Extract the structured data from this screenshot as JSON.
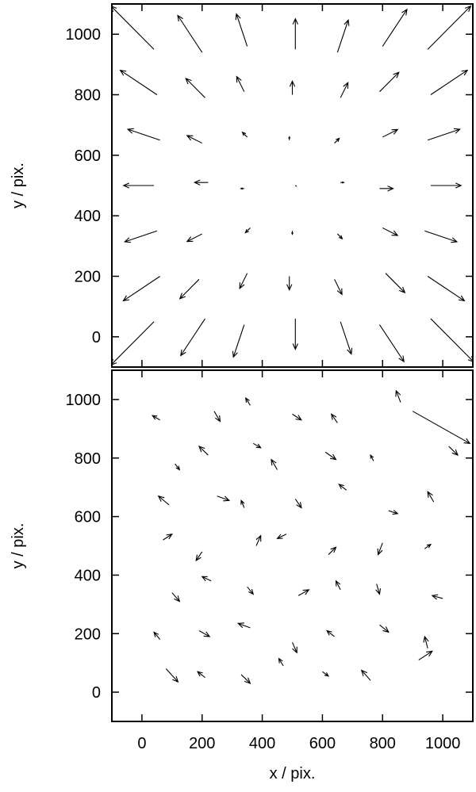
{
  "chart_data": [
    {
      "type": "quiver",
      "ylabel": "y / pix.",
      "xtick_labels": false,
      "xlim": [
        -100,
        1100
      ],
      "ylim": [
        -100,
        1100
      ],
      "xticks": [
        0,
        200,
        400,
        600,
        800,
        1000
      ],
      "yticks": [
        0,
        200,
        400,
        600,
        800,
        1000
      ],
      "color": "#000000",
      "x": [
        40,
        210,
        340,
        510,
        660,
        790,
        960,
        60,
        190,
        350,
        490,
        640,
        810,
        950,
        50,
        200,
        360,
        500,
        650,
        800,
        940,
        40,
        220,
        340,
        510,
        660,
        790,
        960,
        60,
        200,
        350,
        490,
        640,
        800,
        950,
        50,
        210,
        340,
        500,
        660,
        790,
        960,
        40,
        200,
        350,
        510,
        650,
        800,
        950
      ],
      "y": [
        50,
        60,
        40,
        60,
        50,
        40,
        60,
        200,
        190,
        210,
        200,
        190,
        210,
        200,
        350,
        340,
        360,
        350,
        340,
        360,
        350,
        500,
        510,
        490,
        500,
        510,
        490,
        500,
        650,
        640,
        660,
        650,
        640,
        660,
        650,
        800,
        790,
        810,
        800,
        790,
        810,
        800,
        950,
        940,
        960,
        950,
        940,
        960,
        950
      ],
      "u": [
        -143,
        -81,
        -36,
        0,
        36,
        81,
        143,
        -122,
        -64,
        -25,
        0,
        25,
        64,
        122,
        -107,
        -50,
        -16,
        0,
        16,
        50,
        107,
        -101,
        -45,
        -11,
        3,
        11,
        45,
        101,
        -107,
        -50,
        -16,
        0,
        16,
        50,
        107,
        -122,
        -64,
        -25,
        0,
        25,
        64,
        122,
        -143,
        -81,
        -36,
        0,
        36,
        81,
        143
      ],
      "v": [
        -143,
        -122,
        -107,
        -101,
        -107,
        -122,
        -143,
        -81,
        -64,
        -50,
        -45,
        -50,
        -64,
        -81,
        -36,
        -25,
        -16,
        -11,
        -16,
        -25,
        -36,
        0,
        0,
        0,
        -2,
        0,
        0,
        0,
        36,
        25,
        16,
        11,
        16,
        25,
        36,
        81,
        64,
        50,
        45,
        50,
        64,
        81,
        143,
        122,
        107,
        101,
        107,
        122,
        143
      ]
    },
    {
      "type": "quiver",
      "ylabel": "y / pix.",
      "xlabel": "x / pix.",
      "xtick_labels": true,
      "xlim": [
        -100,
        1100
      ],
      "ylim": [
        -100,
        1100
      ],
      "xticks": [
        0,
        200,
        400,
        600,
        800,
        1000
      ],
      "yticks": [
        0,
        200,
        400,
        600,
        800,
        1000
      ],
      "color": "#000000",
      "x": [
        80,
        210,
        330,
        470,
        600,
        760,
        920,
        60,
        190,
        360,
        500,
        640,
        790,
        950,
        100,
        230,
        350,
        520,
        660,
        780,
        1000,
        70,
        200,
        380,
        480,
        620,
        800,
        940,
        90,
        250,
        340,
        510,
        680,
        820,
        970,
        110,
        220,
        370,
        450,
        610,
        770,
        1020,
        60,
        240,
        360,
        500,
        650,
        860,
        900
      ],
      "y": [
        80,
        50,
        60,
        90,
        70,
        40,
        110,
        180,
        210,
        220,
        170,
        190,
        230,
        150,
        340,
        380,
        360,
        330,
        350,
        370,
        320,
        520,
        480,
        500,
        540,
        470,
        510,
        490,
        640,
        670,
        630,
        660,
        690,
        620,
        650,
        780,
        810,
        850,
        760,
        820,
        790,
        840,
        930,
        960,
        980,
        950,
        920,
        990,
        960
      ],
      "u": [
        40,
        -25,
        30,
        -15,
        20,
        -30,
        45,
        -20,
        35,
        -40,
        15,
        -25,
        30,
        -10,
        25,
        -30,
        20,
        35,
        -15,
        10,
        -35,
        30,
        -20,
        15,
        -30,
        25,
        -15,
        20,
        -35,
        40,
        -10,
        20,
        -25,
        30,
        -20,
        15,
        -30,
        25,
        -20,
        35,
        -10,
        30,
        -25,
        20,
        -15,
        30,
        -20,
        -15,
        190
      ],
      "v": [
        -45,
        20,
        -30,
        25,
        -15,
        35,
        30,
        25,
        -20,
        15,
        -35,
        20,
        -25,
        40,
        -30,
        15,
        -25,
        20,
        30,
        -35,
        10,
        20,
        -30,
        35,
        -15,
        25,
        -40,
        15,
        30,
        -15,
        25,
        -30,
        20,
        -10,
        35,
        -20,
        30,
        -15,
        35,
        -25,
        20,
        -30,
        15,
        -35,
        25,
        -20,
        30,
        40,
        -110
      ]
    }
  ]
}
